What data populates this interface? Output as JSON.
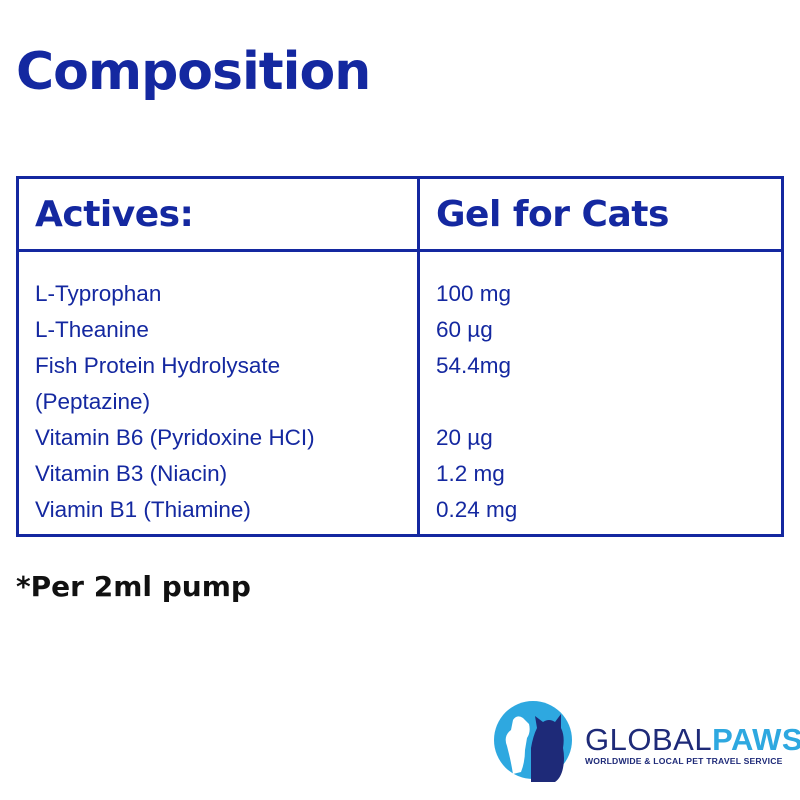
{
  "title": "Composition",
  "table": {
    "headers": [
      "Actives:",
      "Gel for Cats"
    ],
    "rows": [
      {
        "active": "L-Typrophan",
        "amount": "100 mg"
      },
      {
        "active": "L-Theanine",
        "amount": "60 µg"
      },
      {
        "active": "Fish Protein Hydrolysate",
        "amount": "54.4mg"
      },
      {
        "active": "(Peptazine)",
        "amount": ""
      },
      {
        "active": "Vitamin B6 (Pyridoxine HCI)",
        "amount": "20 µg"
      },
      {
        "active": "Vitamin B3 (Niacin)",
        "amount": "1.2 mg"
      },
      {
        "active": "Viamin B1 (Thiamine)",
        "amount": "0.24 mg"
      }
    ]
  },
  "footnote": "*Per 2ml pump",
  "logo": {
    "brand_part1": "GLOBAL",
    "brand_part2": "PAWS",
    "tagline": "WORLDWIDE & LOCAL PET TRAVEL SERVICE",
    "icon": "dog-cat-silhouette-icon",
    "colors": {
      "navy": "#1e2a78",
      "light_blue": "#2ea8e0"
    }
  },
  "colors": {
    "primary": "#1428a0",
    "footnote": "#111111",
    "background": "#ffffff"
  }
}
